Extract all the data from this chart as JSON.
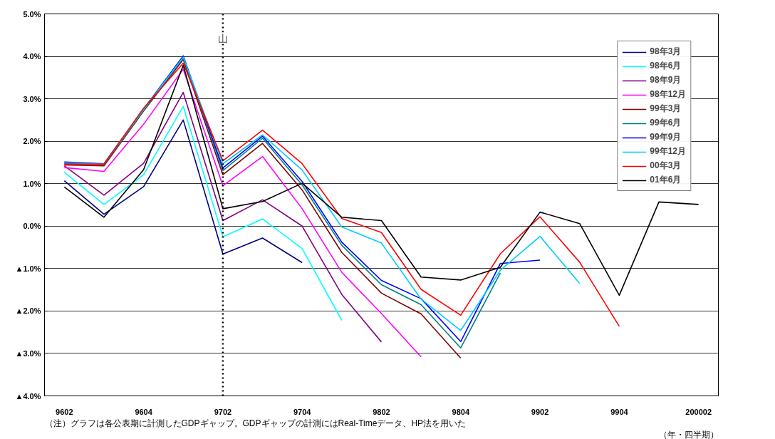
{
  "chart_data": {
    "type": "line",
    "categories": [
      "9602",
      null,
      "9604",
      null,
      "9702",
      null,
      "9704",
      null,
      "9802",
      null,
      "9804",
      null,
      "9902",
      null,
      "9904",
      null,
      "200002"
    ],
    "ylim": [
      -4.0,
      5.0
    ],
    "yticks": [
      {
        "value": 5,
        "label": "5.0%"
      },
      {
        "value": 4,
        "label": "4.0%"
      },
      {
        "value": 3,
        "label": "3.0%"
      },
      {
        "value": 2,
        "label": "2.0%"
      },
      {
        "value": 1,
        "label": "1.0%"
      },
      {
        "value": 0,
        "label": "0.0%"
      },
      {
        "value": -1,
        "label": "▲1.0%"
      },
      {
        "value": -2,
        "label": "▲2.0%"
      },
      {
        "value": -3,
        "label": "▲3.0%"
      },
      {
        "value": -4,
        "label": "▲4.0%"
      }
    ],
    "grid": "y",
    "legend": "top right",
    "line_style": "solid",
    "series": [
      {
        "name": "98年3月",
        "color": "#000080",
        "values": [
          1.07,
          0.28,
          0.93,
          2.5,
          -0.66,
          -0.28,
          -0.86,
          null,
          null,
          null,
          null,
          null,
          null,
          null,
          null,
          null,
          null
        ]
      },
      {
        "name": "98年6月",
        "color": "#00ffff",
        "values": [
          1.27,
          0.51,
          1.21,
          2.82,
          -0.25,
          0.17,
          -0.53,
          -2.22,
          null,
          null,
          null,
          null,
          null,
          null,
          null,
          null,
          null
        ]
      },
      {
        "name": "98年9月",
        "color": "#800080",
        "values": [
          1.42,
          0.73,
          1.48,
          3.15,
          0.13,
          0.62,
          0.0,
          -1.61,
          -2.73,
          null,
          null,
          null,
          null,
          null,
          null,
          null,
          null
        ]
      },
      {
        "name": "98年12月",
        "color": "#ff00ff",
        "values": [
          1.38,
          1.29,
          2.4,
          3.7,
          0.95,
          1.64,
          0.41,
          -1.09,
          -2.06,
          -3.08,
          null,
          null,
          null,
          null,
          null,
          null,
          null
        ]
      },
      {
        "name": "99年3月",
        "color": "#800000",
        "values": [
          1.44,
          1.42,
          2.71,
          3.93,
          1.21,
          1.95,
          0.85,
          -0.62,
          -1.58,
          -2.07,
          -3.11,
          null,
          null,
          null,
          null,
          null,
          null
        ]
      },
      {
        "name": "99年6月",
        "color": "#008080",
        "values": [
          1.48,
          1.45,
          2.73,
          3.97,
          1.31,
          2.07,
          0.97,
          -0.45,
          -1.38,
          -1.85,
          -2.87,
          -1.1,
          null,
          null,
          null,
          null,
          null
        ]
      },
      {
        "name": "99年9月",
        "color": "#0000ff",
        "values": [
          1.51,
          1.47,
          2.76,
          4.01,
          1.37,
          2.12,
          1.05,
          -0.38,
          -1.28,
          -1.71,
          -2.72,
          -0.88,
          -0.8,
          null,
          null,
          null,
          null
        ]
      },
      {
        "name": "99年12月",
        "color": "#00ccff",
        "values": [
          1.49,
          1.46,
          2.75,
          3.98,
          1.47,
          2.15,
          1.32,
          -0.02,
          -0.4,
          -1.72,
          -2.46,
          -1.04,
          -0.24,
          -1.35,
          null,
          null,
          null
        ]
      },
      {
        "name": "00年3月",
        "color": "#ff0000",
        "values": [
          1.46,
          1.46,
          2.78,
          3.84,
          1.54,
          2.26,
          1.47,
          0.18,
          -0.15,
          -1.49,
          -2.1,
          -0.65,
          0.22,
          -0.85,
          -2.36,
          null,
          null
        ]
      },
      {
        "name": "01年6月",
        "color": "#000000",
        "values": [
          0.92,
          0.21,
          1.33,
          3.79,
          0.41,
          0.58,
          1.01,
          0.21,
          0.13,
          -1.2,
          -1.27,
          -0.97,
          0.33,
          0.06,
          -1.63,
          0.57,
          0.51
        ]
      }
    ],
    "ref_lines": [
      {
        "axis": "x",
        "value": "9702",
        "label": "山",
        "color": "#000000",
        "line_style": "dotted"
      }
    ],
    "annotations": [
      "（注）グラフは各公表期に計測したGDPギャップ。GDPギャップの計測にはReal-Timeデータ、HP法を用いた",
      "（年・四半期）"
    ]
  }
}
